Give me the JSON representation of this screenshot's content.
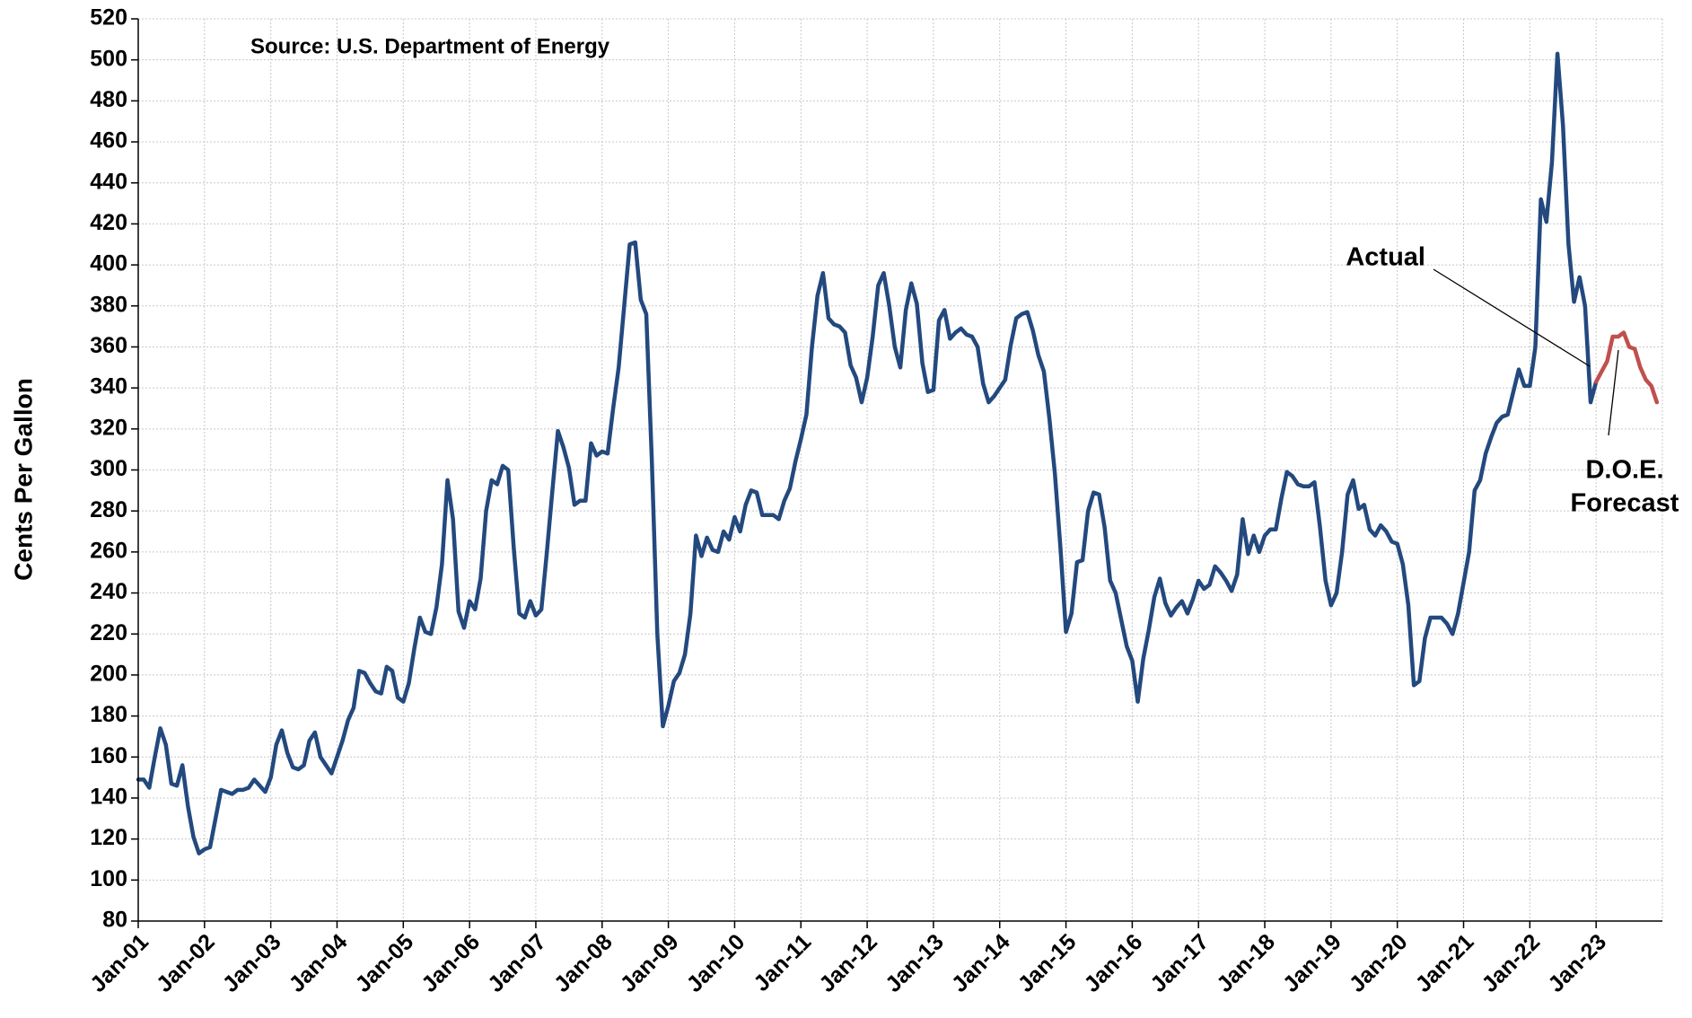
{
  "chart_data": {
    "type": "line",
    "source": "Source: U.S. Department of Energy",
    "ylabel": "Cents Per Gallon",
    "annotations": {
      "actual": "Actual",
      "forecast": [
        "D.O.E.",
        "Forecast"
      ]
    },
    "categories": [
      "Jan-01",
      null,
      null,
      null,
      null,
      null,
      null,
      null,
      null,
      null,
      null,
      null,
      "Jan-02",
      null,
      null,
      null,
      null,
      null,
      null,
      null,
      null,
      null,
      null,
      null,
      "Jan-03",
      null,
      null,
      null,
      null,
      null,
      null,
      null,
      null,
      null,
      null,
      null,
      "Jan-04",
      null,
      null,
      null,
      null,
      null,
      null,
      null,
      null,
      null,
      null,
      null,
      "Jan-05",
      null,
      null,
      null,
      null,
      null,
      null,
      null,
      null,
      null,
      null,
      null,
      "Jan-06",
      null,
      null,
      null,
      null,
      null,
      null,
      null,
      null,
      null,
      null,
      null,
      "Jan-07",
      null,
      null,
      null,
      null,
      null,
      null,
      null,
      null,
      null,
      null,
      null,
      "Jan-08",
      null,
      null,
      null,
      null,
      null,
      null,
      null,
      null,
      null,
      null,
      null,
      "Jan-09",
      null,
      null,
      null,
      null,
      null,
      null,
      null,
      null,
      null,
      null,
      null,
      "Jan-10",
      null,
      null,
      null,
      null,
      null,
      null,
      null,
      null,
      null,
      null,
      null,
      "Jan-11",
      null,
      null,
      null,
      null,
      null,
      null,
      null,
      null,
      null,
      null,
      null,
      "Jan-12",
      null,
      null,
      null,
      null,
      null,
      null,
      null,
      null,
      null,
      null,
      null,
      "Jan-13",
      null,
      null,
      null,
      null,
      null,
      null,
      null,
      null,
      null,
      null,
      null,
      "Jan-14",
      null,
      null,
      null,
      null,
      null,
      null,
      null,
      null,
      null,
      null,
      null,
      "Jan-15",
      null,
      null,
      null,
      null,
      null,
      null,
      null,
      null,
      null,
      null,
      null,
      "Jan-16",
      null,
      null,
      null,
      null,
      null,
      null,
      null,
      null,
      null,
      null,
      null,
      "Jan-17",
      null,
      null,
      null,
      null,
      null,
      null,
      null,
      null,
      null,
      null,
      null,
      "Jan-18",
      null,
      null,
      null,
      null,
      null,
      null,
      null,
      null,
      null,
      null,
      null,
      "Jan-19",
      null,
      null,
      null,
      null,
      null,
      null,
      null,
      null,
      null,
      null,
      null,
      "Jan-20",
      null,
      null,
      null,
      null,
      null,
      null,
      null,
      null,
      null,
      null,
      null,
      "Jan-21",
      null,
      null,
      null,
      null,
      null,
      null,
      null,
      null,
      null,
      null,
      null,
      "Jan-22",
      null,
      null,
      null,
      null,
      null,
      null,
      null,
      null,
      null,
      null,
      null,
      "Jan-23",
      null,
      null,
      null,
      null,
      null,
      null,
      null,
      null,
      null,
      null,
      null
    ],
    "series": [
      {
        "name": "Actual",
        "color": "#23497e",
        "values": [
          149,
          149,
          145,
          160,
          174,
          166,
          147,
          146,
          156,
          136,
          121,
          113,
          115,
          116,
          130,
          144,
          143,
          142,
          144,
          144,
          145,
          149,
          146,
          143,
          150,
          166,
          173,
          162,
          155,
          154,
          156,
          168,
          172,
          160,
          156,
          152,
          160,
          168,
          178,
          184,
          202,
          201,
          196,
          192,
          191,
          204,
          202,
          189,
          187,
          196,
          213,
          228,
          221,
          220,
          233,
          254,
          295,
          276,
          231,
          223,
          236,
          232,
          247,
          280,
          295,
          293,
          302,
          300,
          262,
          230,
          228,
          236,
          229,
          232,
          260,
          290,
          319,
          311,
          301,
          283,
          285,
          285,
          313,
          307,
          309,
          308,
          330,
          350,
          380,
          410,
          411,
          383,
          376,
          305,
          220,
          175,
          185,
          197,
          201,
          210,
          230,
          268,
          258,
          267,
          261,
          260,
          270,
          266,
          277,
          270,
          283,
          290,
          289,
          278,
          278,
          278,
          276,
          285,
          291,
          304,
          315,
          327,
          360,
          385,
          396,
          374,
          371,
          370,
          367,
          351,
          345,
          333,
          345,
          365,
          390,
          396,
          380,
          360,
          350,
          378,
          391,
          381,
          352,
          338,
          339,
          373,
          378,
          364,
          367,
          369,
          366,
          365,
          360,
          342,
          333,
          336,
          340,
          344,
          361,
          374,
          376,
          377,
          368,
          356,
          348,
          325,
          298,
          262,
          221,
          230,
          255,
          256,
          280,
          289,
          288,
          272,
          246,
          240,
          227,
          214,
          207,
          187,
          208,
          222,
          238,
          247,
          235,
          229,
          233,
          236,
          230,
          237,
          246,
          242,
          244,
          253,
          250,
          246,
          241,
          249,
          276,
          259,
          268,
          260,
          268,
          271,
          271,
          286,
          299,
          297,
          293,
          292,
          292,
          294,
          272,
          246,
          234,
          240,
          260,
          288,
          295,
          281,
          283,
          271,
          268,
          273,
          270,
          265,
          264,
          254,
          234,
          195,
          197,
          218,
          228,
          228,
          228,
          225,
          220,
          230,
          245,
          260,
          290,
          295,
          308,
          316,
          323,
          326,
          327,
          338,
          349,
          341,
          341,
          360,
          432,
          421,
          450,
          503,
          468,
          410,
          382,
          394,
          380,
          333,
          343,
          null,
          null,
          null,
          null,
          null,
          null,
          null,
          null,
          null,
          null,
          null
        ]
      },
      {
        "name": "D.O.E. Forecast",
        "color": "#c0504d",
        "values": [
          null,
          null,
          null,
          null,
          null,
          null,
          null,
          null,
          null,
          null,
          null,
          null,
          null,
          null,
          null,
          null,
          null,
          null,
          null,
          null,
          null,
          null,
          null,
          null,
          null,
          null,
          null,
          null,
          null,
          null,
          null,
          null,
          null,
          null,
          null,
          null,
          null,
          null,
          null,
          null,
          null,
          null,
          null,
          null,
          null,
          null,
          null,
          null,
          null,
          null,
          null,
          null,
          null,
          null,
          null,
          null,
          null,
          null,
          null,
          null,
          null,
          null,
          null,
          null,
          null,
          null,
          null,
          null,
          null,
          null,
          null,
          null,
          null,
          null,
          null,
          null,
          null,
          null,
          null,
          null,
          null,
          null,
          null,
          null,
          null,
          null,
          null,
          null,
          null,
          null,
          null,
          null,
          null,
          null,
          null,
          null,
          null,
          null,
          null,
          null,
          null,
          null,
          null,
          null,
          null,
          null,
          null,
          null,
          null,
          null,
          null,
          null,
          null,
          null,
          null,
          null,
          null,
          null,
          null,
          null,
          null,
          null,
          null,
          null,
          null,
          null,
          null,
          null,
          null,
          null,
          null,
          null,
          null,
          null,
          null,
          null,
          null,
          null,
          null,
          null,
          null,
          null,
          null,
          null,
          null,
          null,
          null,
          null,
          null,
          null,
          null,
          null,
          null,
          null,
          null,
          null,
          null,
          null,
          null,
          null,
          null,
          null,
          null,
          null,
          null,
          null,
          null,
          null,
          null,
          null,
          null,
          null,
          null,
          null,
          null,
          null,
          null,
          null,
          null,
          null,
          null,
          null,
          null,
          null,
          null,
          null,
          null,
          null,
          null,
          null,
          null,
          null,
          null,
          null,
          null,
          null,
          null,
          null,
          null,
          null,
          null,
          null,
          null,
          null,
          null,
          null,
          null,
          null,
          null,
          null,
          null,
          null,
          null,
          null,
          null,
          null,
          null,
          null,
          null,
          null,
          null,
          null,
          null,
          null,
          null,
          null,
          null,
          null,
          null,
          null,
          null,
          null,
          null,
          null,
          null,
          null,
          null,
          null,
          null,
          null,
          null,
          null,
          null,
          null,
          null,
          null,
          null,
          null,
          null,
          null,
          null,
          null,
          null,
          null,
          null,
          null,
          null,
          null,
          null,
          null,
          null,
          null,
          null,
          null,
          343,
          348,
          353,
          365,
          365,
          367,
          360,
          359,
          350,
          344,
          341,
          333
        ]
      }
    ],
    "ylim": [
      80,
      520
    ],
    "yticks": [
      80,
      100,
      120,
      140,
      160,
      180,
      200,
      220,
      240,
      260,
      280,
      300,
      320,
      340,
      360,
      380,
      400,
      420,
      440,
      460,
      480,
      500,
      520
    ],
    "grid": true
  }
}
